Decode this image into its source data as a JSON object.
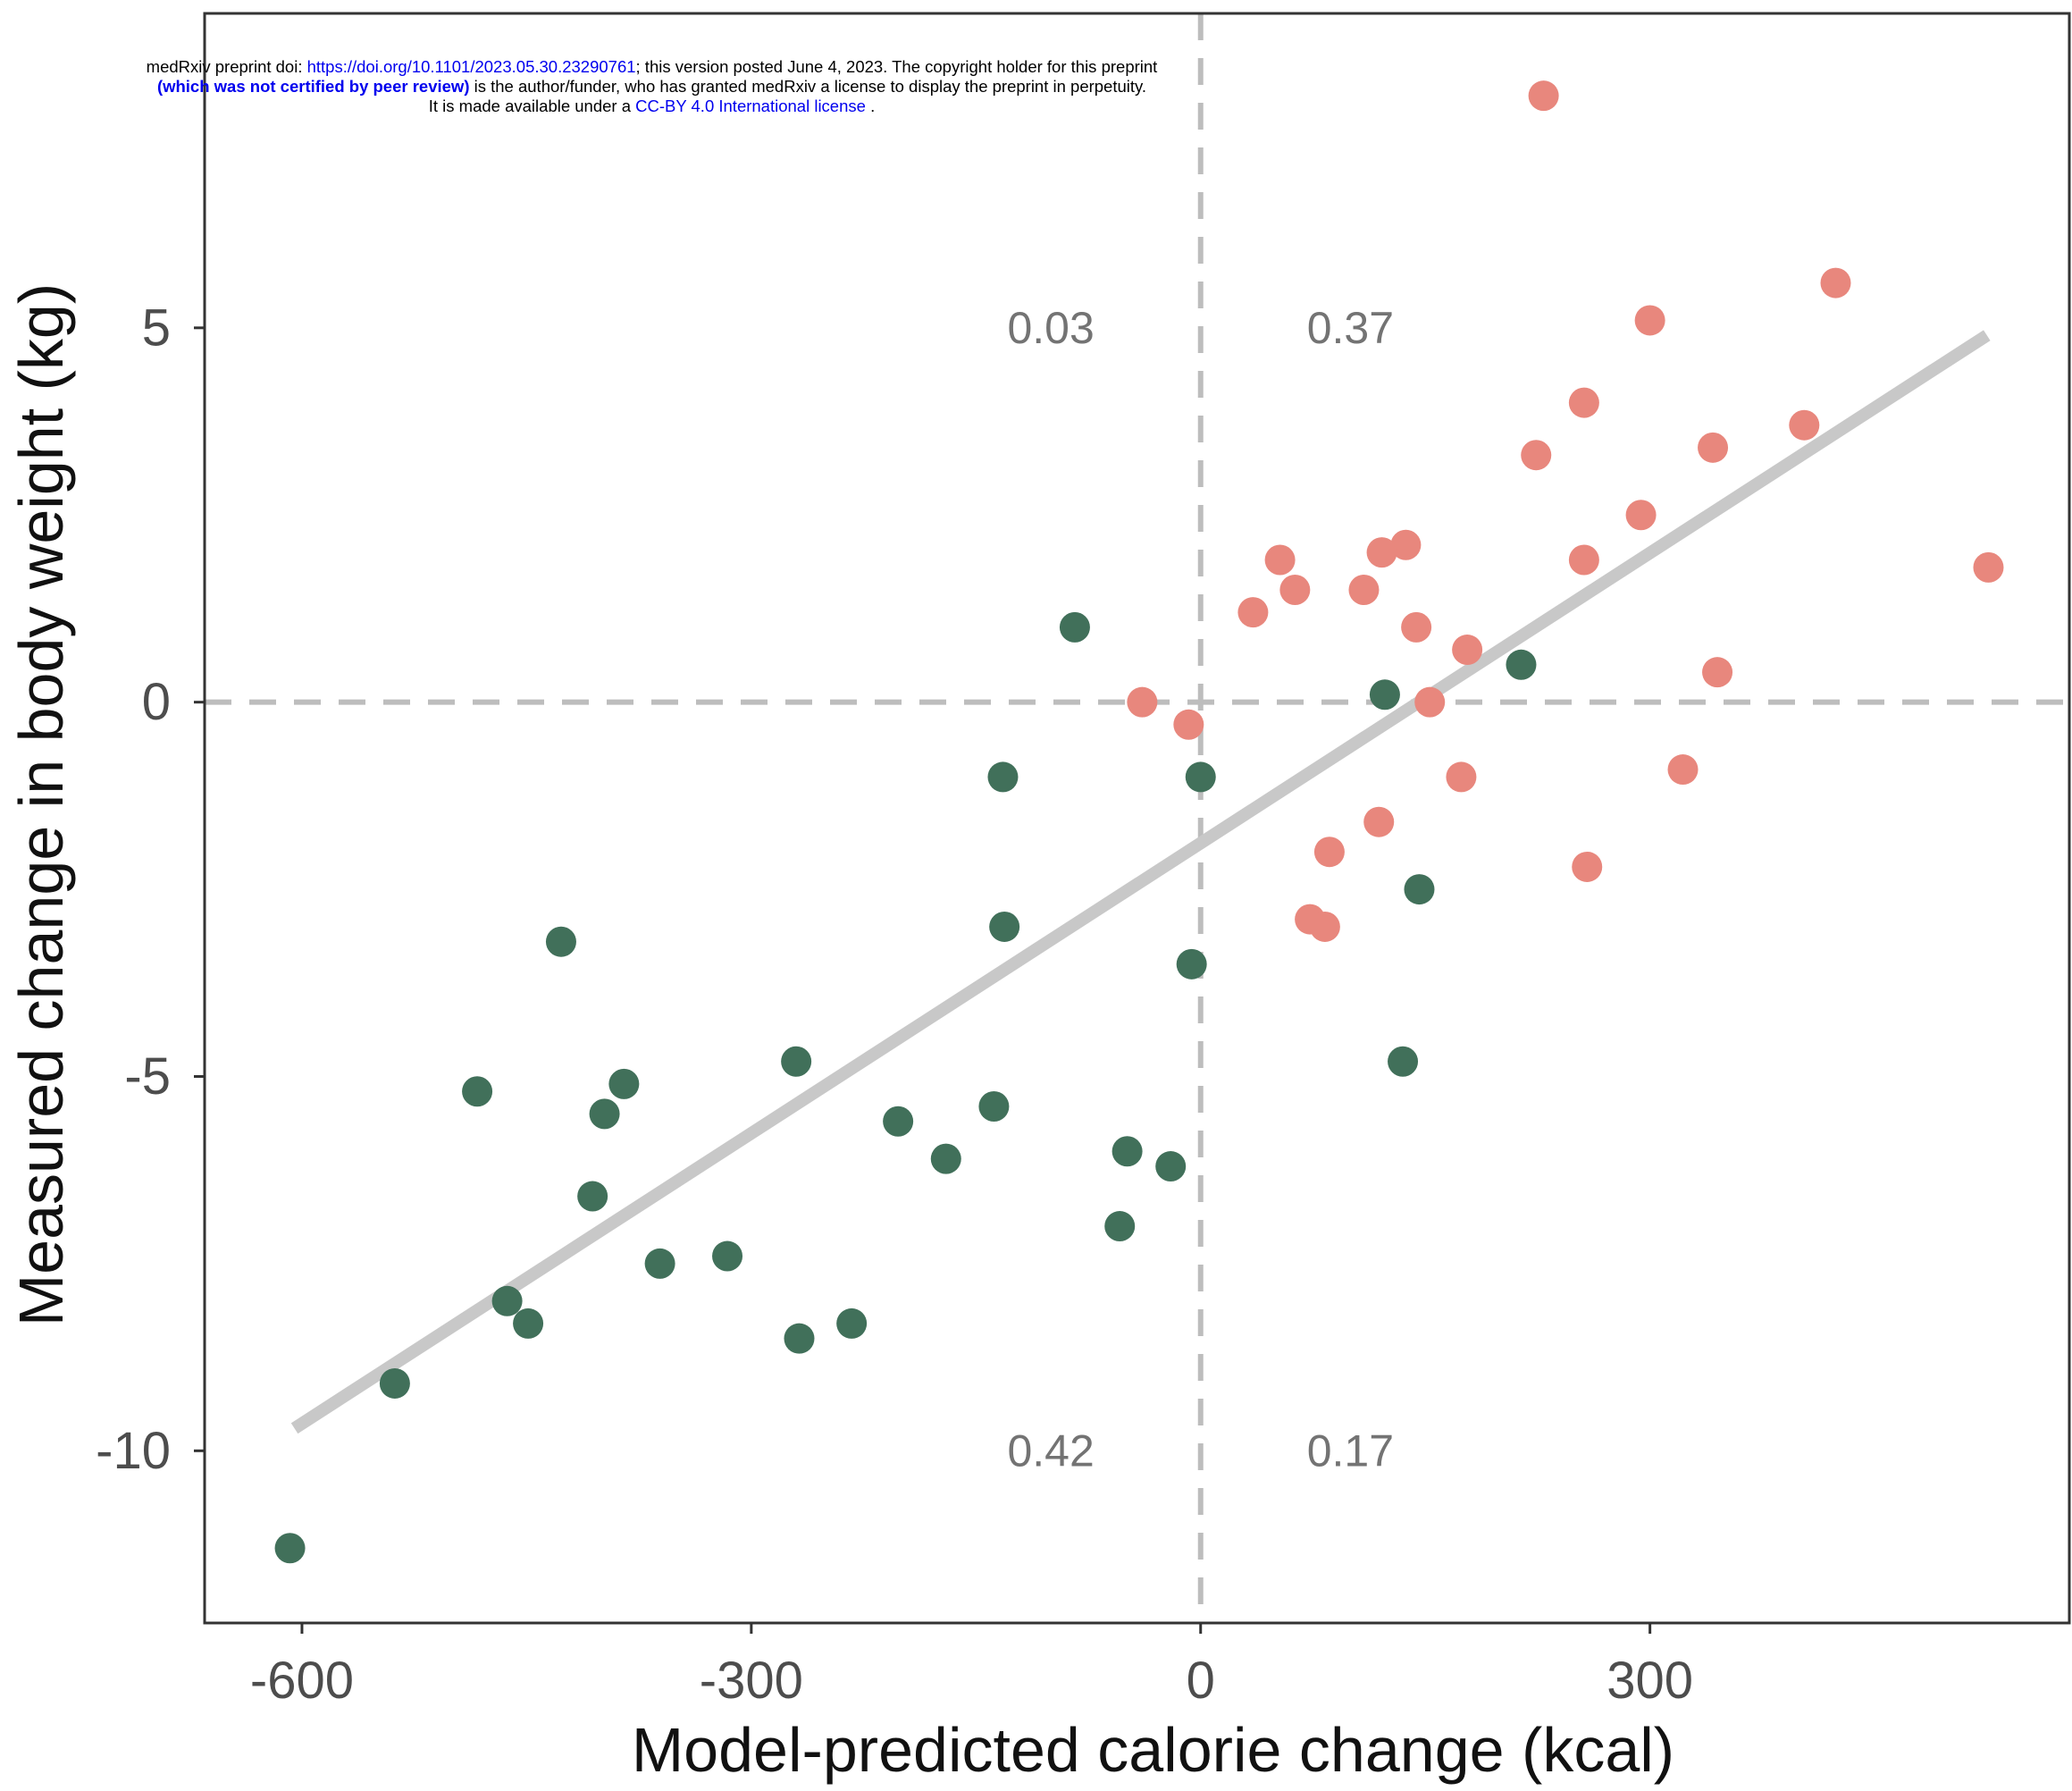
{
  "preprint_notice": {
    "line1_prefix": "medRxiv preprint doi: ",
    "doi_link": "https://doi.org/10.1101/2023.05.30.23290761",
    "line1_suffix": "; this version posted June 4, 2023. The copyright holder for this preprint",
    "line2_bold": "(which was not certified by peer review)",
    "line2_suffix": " is the author/funder, who has granted medRxiv a license to display the preprint in perpetuity.",
    "line3_prefix": "It is made available under a ",
    "license_link": "CC-BY 4.0 International license",
    "line3_suffix": " ."
  },
  "colors": {
    "positive_points": "#E8877D",
    "negative_points": "#41705A",
    "regression_line": "#C8C8C8",
    "reference_lines": "#BDBDBD",
    "axis_text": "#4D4D4D",
    "quadrant_text": "#737373",
    "frame": "#333333"
  },
  "chart_data": {
    "type": "scatter",
    "title": "",
    "xlabel": "Model-predicted calorie change (kcal)",
    "ylabel": "Measured change in body weight (kg)",
    "xlim": [
      -665,
      580
    ],
    "ylim": [
      -12.3,
      9.2
    ],
    "x_ticks": [
      -600,
      -300,
      0,
      300
    ],
    "x_tick_labels": [
      "-600",
      "-300",
      "0",
      "300"
    ],
    "y_ticks": [
      -10,
      -5,
      0,
      5
    ],
    "y_tick_labels": [
      "-10",
      "-5",
      "0",
      "5"
    ],
    "grid": false,
    "legend": "none",
    "reference_lines": {
      "x": 0,
      "y": 0
    },
    "quadrant_labels": [
      {
        "text": "0.03",
        "x": -100,
        "y": 5
      },
      {
        "text": "0.37",
        "x": 100,
        "y": 5
      },
      {
        "text": "0.42",
        "x": -100,
        "y": -10
      },
      {
        "text": "0.17",
        "x": 100,
        "y": -10
      }
    ],
    "regression_line": {
      "x": [
        -605,
        525
      ],
      "y": [
        -9.7,
        4.9
      ]
    },
    "series": [
      {
        "color": "#E8877D",
        "x": [
          229,
          424,
          300,
          256,
          403,
          224,
          342,
          294,
          137,
          121,
          53,
          256,
          109,
          63,
          35,
          144,
          178,
          345,
          153,
          526,
          -39,
          -8,
          174,
          322,
          86,
          119,
          258,
          73,
          83
        ],
        "y": [
          8.1,
          5.6,
          5.1,
          4.0,
          3.7,
          3.3,
          3.4,
          2.5,
          2.1,
          2.0,
          1.9,
          1.9,
          1.5,
          1.5,
          1.2,
          1.0,
          0.7,
          0.4,
          0.0,
          1.8,
          0.0,
          -0.3,
          -1.0,
          -0.9,
          -2.0,
          -1.6,
          -2.2,
          -2.9,
          -3.0
        ]
      },
      {
        "color": "#41705A",
        "x": [
          -84,
          123,
          214,
          -132,
          0,
          -131,
          -6,
          146,
          -538,
          -427,
          -483,
          -385,
          -398,
          -406,
          -270,
          -138,
          -202,
          -170,
          -49,
          -20,
          -54,
          -361,
          -316,
          -233,
          -268,
          -463,
          -449,
          -608,
          135
        ],
        "y": [
          1.0,
          0.1,
          0.5,
          -1.0,
          -1.0,
          -3.0,
          -3.5,
          -2.5,
          -9.1,
          -3.2,
          -5.2,
          -5.1,
          -5.5,
          -6.6,
          -4.8,
          -5.4,
          -5.6,
          -6.1,
          -6.0,
          -6.2,
          -7.0,
          -7.5,
          -7.4,
          -8.3,
          -8.5,
          -8.0,
          -8.3,
          -11.3,
          -4.8
        ]
      }
    ]
  }
}
